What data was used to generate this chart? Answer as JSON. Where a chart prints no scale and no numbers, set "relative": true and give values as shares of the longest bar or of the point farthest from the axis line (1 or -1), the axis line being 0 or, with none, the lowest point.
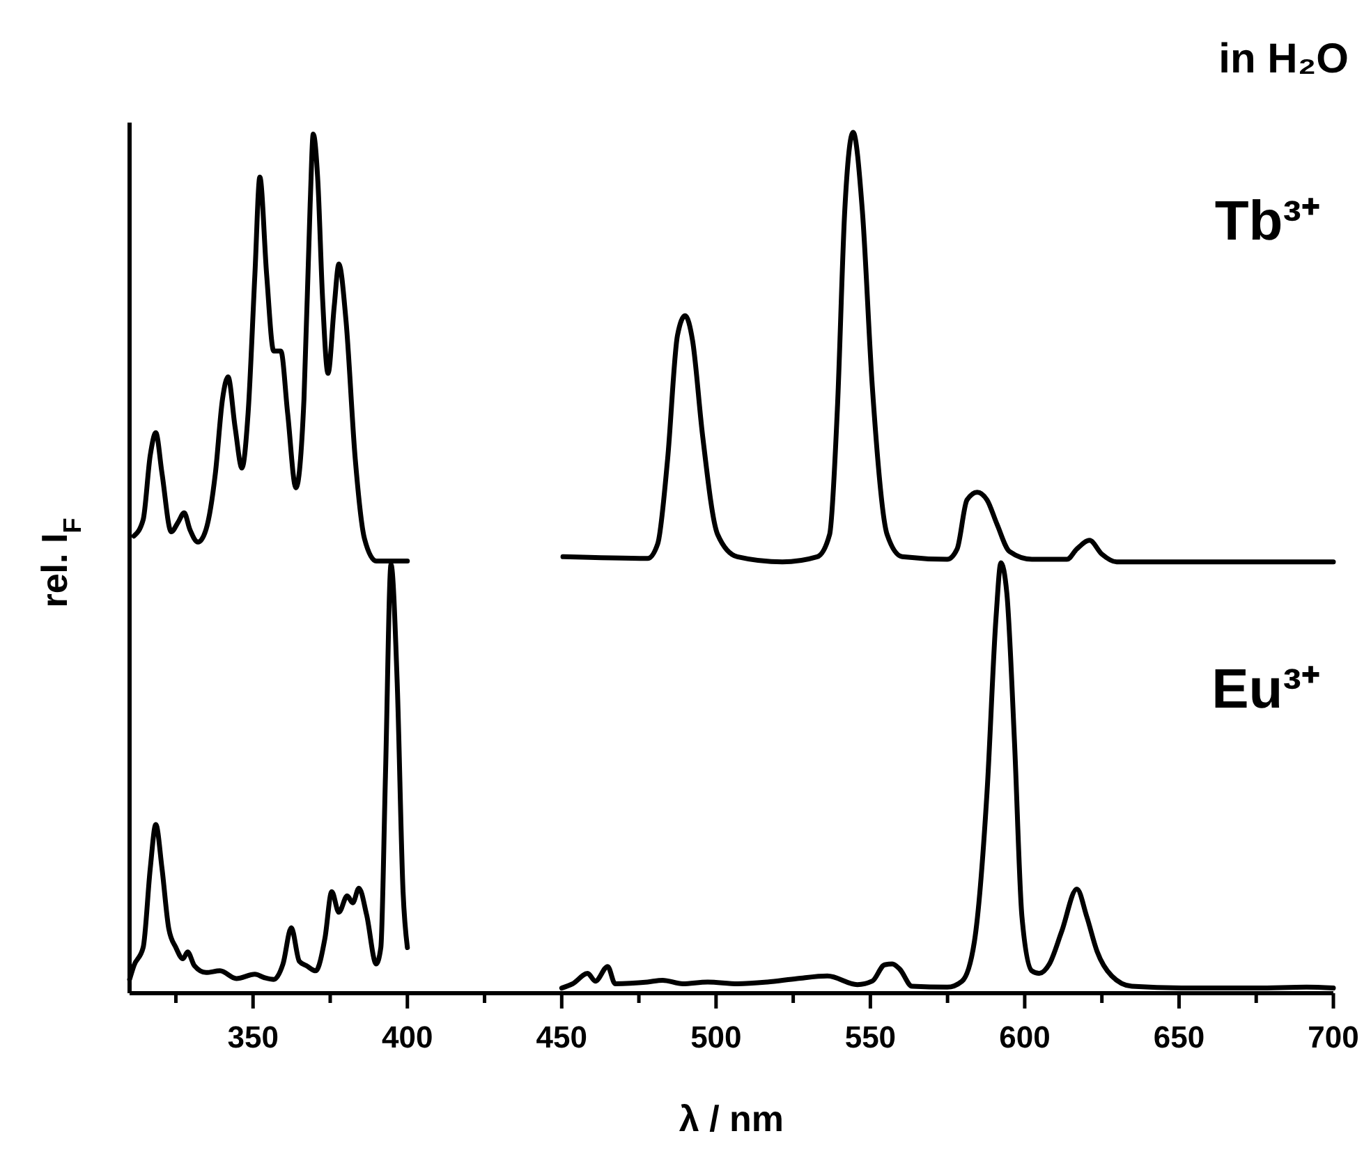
{
  "chart_data": {
    "type": "line",
    "relative": true,
    "xlabel": "λ / nm",
    "ylabel": "rel. I$_{F}$",
    "annotations": [
      "in H₂O",
      "Tb³⁺",
      "Eu³⁺"
    ],
    "xlim": [
      310,
      700
    ],
    "xticks": [
      {
        "value": 325,
        "label": null
      },
      350,
      {
        "value": 375,
        "label": null
      },
      400,
      {
        "value": 425,
        "label": null
      },
      450,
      {
        "value": 475,
        "label": null
      },
      500,
      {
        "value": 525,
        "label": null
      },
      550,
      {
        "value": 575,
        "label": null
      },
      600,
      {
        "value": 625,
        "label": null
      },
      650,
      {
        "value": 675,
        "label": null
      },
      700
    ],
    "series": [
      {
        "color": "#000000",
        "x": [
          311.4,
          314.4,
          316.7,
          318.5,
          320.5,
          323.5,
          325.7,
          327.7,
          329.5,
          332.2,
          334.8,
          337.8,
          340.1,
          341.9,
          344.2,
          346.4,
          348.4,
          350.6,
          352.2,
          354.4,
          356.7,
          359.0,
          361.2,
          363.9,
          366.5,
          368.5,
          369.5,
          371.0,
          372.5,
          374.3,
          376.3,
          377.8,
          380.1,
          383.1,
          386.1,
          389.9,
          400
        ],
        "values": [
          0.531,
          0.55,
          0.625,
          0.651,
          0.604,
          0.536,
          0.547,
          0.558,
          0.539,
          0.524,
          0.539,
          0.604,
          0.69,
          0.716,
          0.657,
          0.61,
          0.674,
          0.835,
          0.948,
          0.835,
          0.746,
          0.746,
          0.674,
          0.587,
          0.69,
          0.916,
          0.998,
          0.943,
          0.809,
          0.72,
          0.798,
          0.847,
          0.782,
          0.621,
          0.528,
          0.502,
          0.502
        ]
      },
      {
        "color": "#000000",
        "x": [
          450.4,
          477.8,
          481.1,
          484.3,
          487.5,
          490.0,
          492.4,
          495.6,
          500.5,
          506.9,
          521.5,
          532.8,
          536.8,
          539.3,
          541.7,
          544.4,
          547.4,
          550.6,
          555.4,
          560.3,
          574.9,
          578.1,
          581.3,
          584.6,
          587.8,
          591.0,
          595.1,
          602.3,
          613.7,
          616.9,
          621.0,
          625.0,
          629.8,
          659.0,
          700
        ],
        "values": [
          0.507,
          0.505,
          0.522,
          0.62,
          0.764,
          0.787,
          0.758,
          0.649,
          0.533,
          0.507,
          0.501,
          0.507,
          0.533,
          0.678,
          0.909,
          1.0,
          0.909,
          0.706,
          0.533,
          0.507,
          0.504,
          0.516,
          0.573,
          0.582,
          0.573,
          0.545,
          0.513,
          0.504,
          0.504,
          0.516,
          0.526,
          0.51,
          0.501,
          0.501,
          0.501
        ]
      },
      {
        "color": "#000000",
        "x": [
          310,
          311.4,
          314.4,
          316.7,
          318.5,
          320.5,
          322.7,
          325,
          327.3,
          328.8,
          331.0,
          334.8,
          339.3,
          344.6,
          350.6,
          353.7,
          356.7,
          359.7,
          362.4,
          365.0,
          367.3,
          370.3,
          373.3,
          375.5,
          377.8,
          380.5,
          382.3,
          384.3,
          386.8,
          389.9,
          391.4,
          392.9,
          394.7,
          396.7,
          398.6,
          400
        ],
        "values": [
          0.016,
          0.032,
          0.053,
          0.145,
          0.196,
          0.145,
          0.075,
          0.053,
          0.04,
          0.048,
          0.032,
          0.024,
          0.026,
          0.017,
          0.022,
          0.018,
          0.016,
          0.034,
          0.076,
          0.037,
          0.032,
          0.026,
          0.064,
          0.118,
          0.094,
          0.113,
          0.105,
          0.122,
          0.091,
          0.034,
          0.053,
          0.253,
          0.498,
          0.361,
          0.118,
          0.053
        ]
      },
      {
        "color": "#000000",
        "x": [
          450,
          453.6,
          458.4,
          460.9,
          464.9,
          467.3,
          477.8,
          482.7,
          489.2,
          497.2,
          507.0,
          516.6,
          526.3,
          536.1,
          545.8,
          550.6,
          554.6,
          557.1,
          559.5,
          563.5,
          574.9,
          579.7,
          583.7,
          587.8,
          590.7,
          592.3,
          594.2,
          596.7,
          599.1,
          602.3,
          604.7,
          608.0,
          612.0,
          616.9,
          620.1,
          623.4,
          628.2,
          634.7,
          650.8,
          675.1,
          691.3,
          700
        ],
        "values": [
          0.006,
          0.011,
          0.023,
          0.014,
          0.031,
          0.011,
          0.013,
          0.015,
          0.011,
          0.013,
          0.011,
          0.013,
          0.017,
          0.02,
          0.01,
          0.014,
          0.033,
          0.034,
          0.028,
          0.008,
          0.007,
          0.014,
          0.06,
          0.234,
          0.436,
          0.5,
          0.465,
          0.291,
          0.089,
          0.026,
          0.023,
          0.034,
          0.072,
          0.121,
          0.089,
          0.049,
          0.02,
          0.008,
          0.006,
          0.006,
          0.007,
          0.006
        ]
      }
    ]
  }
}
